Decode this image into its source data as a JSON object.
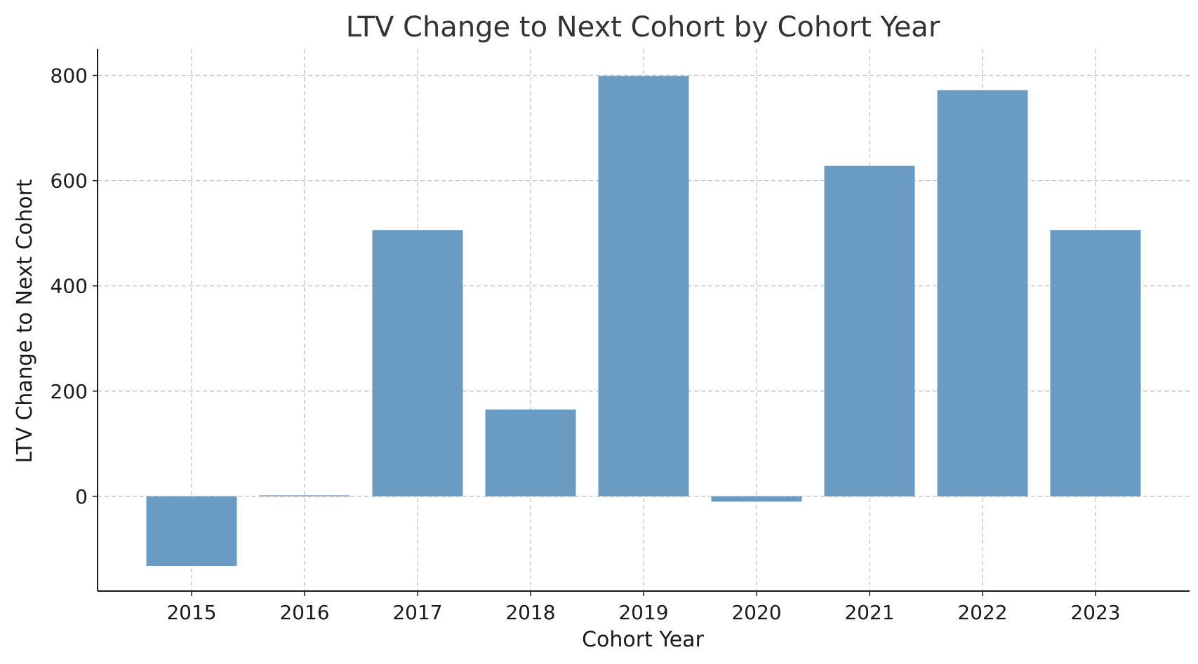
{
  "chart_data": {
    "type": "bar",
    "title": "LTV Change to Next Cohort by Cohort Year",
    "xlabel": "Cohort Year",
    "ylabel": "LTV Change to Next Cohort",
    "categories": [
      "2015",
      "2016",
      "2017",
      "2018",
      "2019",
      "2020",
      "2021",
      "2022",
      "2023"
    ],
    "values": [
      -132,
      2,
      506,
      165,
      799,
      -10,
      628,
      772,
      506
    ],
    "ylim": [
      -180,
      850
    ],
    "yticks": [
      0,
      200,
      400,
      600,
      800
    ],
    "grid": true,
    "legend": "none",
    "bar_color": "#6a9bc3"
  }
}
